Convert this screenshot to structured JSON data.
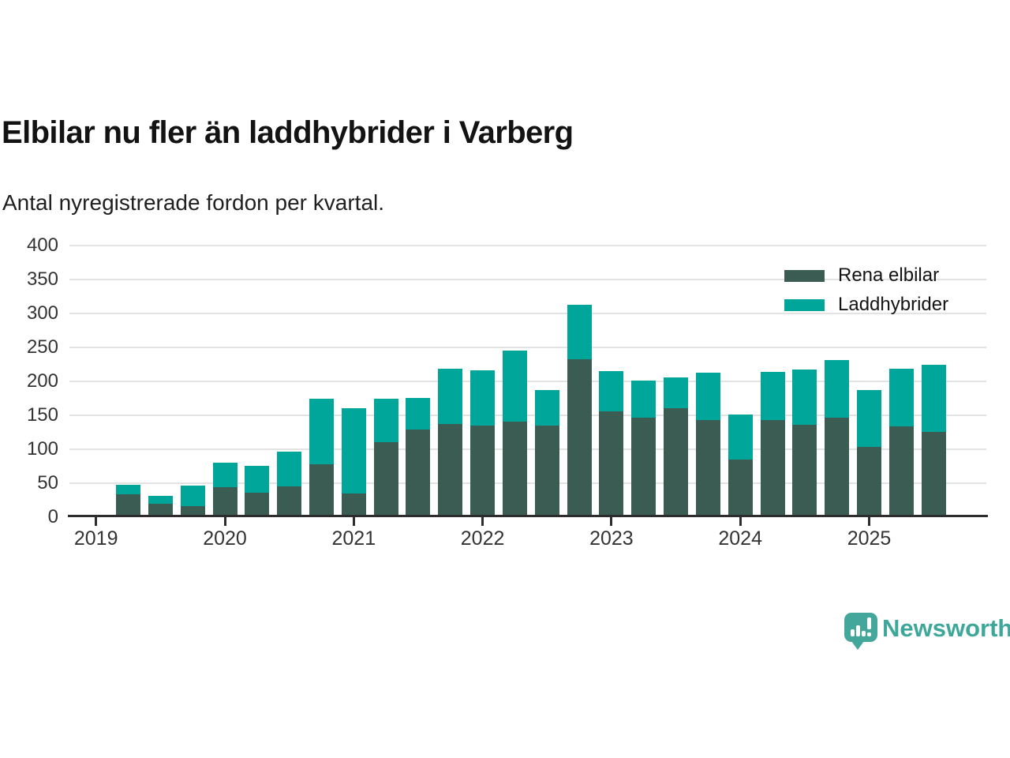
{
  "header": {
    "title": "Elbilar nu fler än laddhybrider i Varberg",
    "subtitle": "Antal nyregistrerade fordon per kvartal."
  },
  "legend": {
    "items": [
      {
        "label": "Rena elbilar",
        "color": "#3a5c53"
      },
      {
        "label": "Laddhybrider",
        "color": "#00a69a"
      }
    ]
  },
  "footer": {
    "brand": "Newsworthy",
    "brand_color": "#3da79a",
    "logo_icon": "bar-chart-speech-bubble-icon"
  },
  "chart_data": {
    "type": "bar",
    "stacked": true,
    "title": "Elbilar nu fler än laddhybrider i Varberg",
    "subtitle": "Antal nyregistrerade fordon per kvartal.",
    "xlabel": "",
    "ylabel": "",
    "ylim": [
      0,
      400
    ],
    "yticks": [
      0,
      50,
      100,
      150,
      200,
      250,
      300,
      350,
      400
    ],
    "grid": "horizontal",
    "legend_position": "top-right",
    "x_axis_year_labels": [
      "2019",
      "2020",
      "2021",
      "2022",
      "2023",
      "2024",
      "2025"
    ],
    "first_bar_quarter_slot": 1,
    "quarters_per_year": 4,
    "categories": [
      "2019 Q2",
      "2019 Q3",
      "2019 Q4",
      "2020 Q1",
      "2020 Q2",
      "2020 Q3",
      "2020 Q4",
      "2021 Q1",
      "2021 Q2",
      "2021 Q3",
      "2021 Q4",
      "2022 Q1",
      "2022 Q2",
      "2022 Q3",
      "2022 Q4",
      "2023 Q1",
      "2023 Q2",
      "2023 Q3",
      "2023 Q4",
      "2024 Q1",
      "2024 Q2",
      "2024 Q3",
      "2024 Q4",
      "2025 Q1",
      "2025 Q2",
      "2025 Q3"
    ],
    "series": [
      {
        "name": "Rena elbilar",
        "color": "#3a5c53",
        "values": [
          34,
          20,
          16,
          44,
          36,
          45,
          78,
          35,
          110,
          129,
          137,
          135,
          141,
          135,
          232,
          156,
          147,
          160,
          143,
          85,
          143,
          136,
          147,
          103,
          134,
          126
        ]
      },
      {
        "name": "Laddhybrider",
        "color": "#00a69a",
        "values": [
          14,
          12,
          31,
          36,
          40,
          51,
          96,
          125,
          65,
          47,
          82,
          81,
          104,
          52,
          81,
          59,
          54,
          46,
          70,
          66,
          71,
          81,
          85,
          84,
          85,
          98
        ]
      }
    ]
  }
}
